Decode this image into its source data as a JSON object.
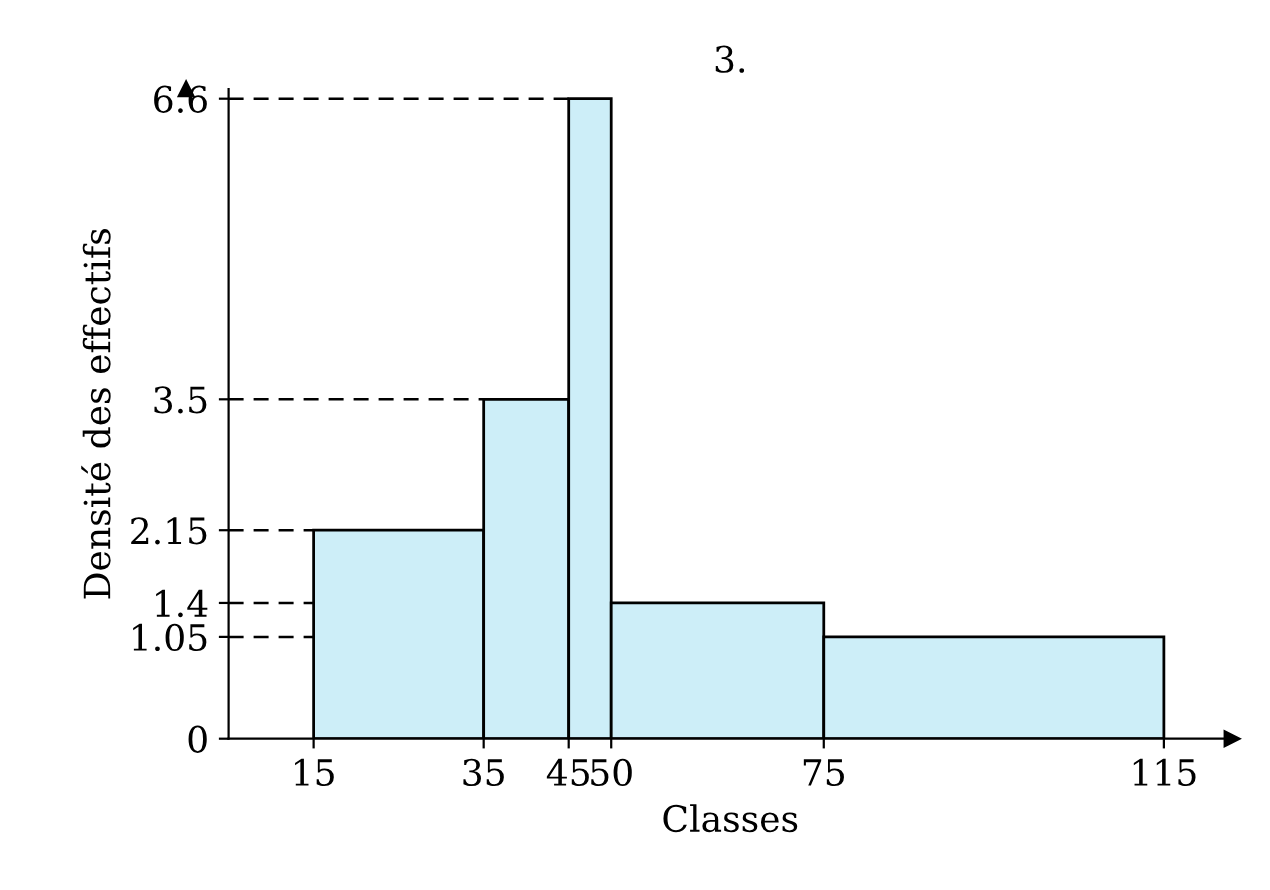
{
  "chart_data": {
    "type": "histogram",
    "title": "3.",
    "xlabel": "Classes",
    "ylabel": "Densité des effectifs",
    "bins": [
      15,
      35,
      45,
      50,
      75,
      115
    ],
    "values": [
      2.15,
      3.5,
      6.6,
      1.4,
      1.05
    ],
    "color": "#cdeef8",
    "xlim": [
      5,
      123
    ],
    "ylim": [
      0,
      6.7
    ],
    "xticks": [
      15,
      35,
      45,
      50,
      75,
      115
    ],
    "yticks": [
      0,
      1.05,
      1.4,
      2.15,
      3.5,
      6.6
    ],
    "ref_lines": [
      {
        "axis": "y",
        "value": 2.15,
        "color": "#000000",
        "line_style": "dashed"
      },
      {
        "axis": "y",
        "value": 3.5,
        "color": "#000000",
        "line_style": "dashed"
      },
      {
        "axis": "y",
        "value": 6.6,
        "color": "#000000",
        "line_style": "dashed"
      },
      {
        "axis": "y",
        "value": 1.4,
        "color": "#000000",
        "line_style": "dashed"
      },
      {
        "axis": "y",
        "value": 1.05,
        "color": "#000000",
        "line_style": "dashed"
      }
    ],
    "grid": false
  }
}
